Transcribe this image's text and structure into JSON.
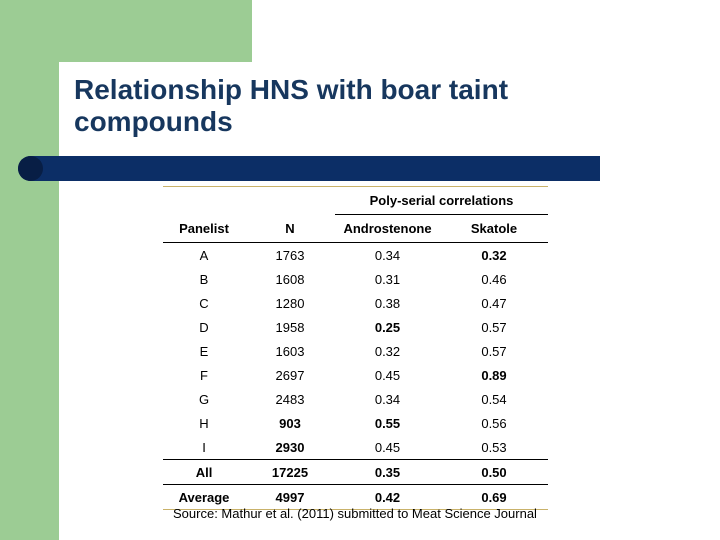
{
  "title": "Relationship HNS with boar taint compounds",
  "colors": {
    "accent_green": "#9ccc94",
    "title_blue": "#17375e",
    "bar_navy": "#0c2e66"
  },
  "table": {
    "group_header": "Poly-serial correlations",
    "columns": [
      "Panelist",
      "N",
      "Androstenone",
      "Skatole"
    ],
    "rows": [
      {
        "panelist": "A",
        "n": "1763",
        "andro": "0.34",
        "skatole": "0.32"
      },
      {
        "panelist": "B",
        "n": "1608",
        "andro": "0.31",
        "skatole": "0.46"
      },
      {
        "panelist": "C",
        "n": "1280",
        "andro": "0.38",
        "skatole": "0.47"
      },
      {
        "panelist": "D",
        "n": "1958",
        "andro": "0.25",
        "skatole": "0.57"
      },
      {
        "panelist": "E",
        "n": "1603",
        "andro": "0.32",
        "skatole": "0.57"
      },
      {
        "panelist": "F",
        "n": "2697",
        "andro": "0.45",
        "skatole": "0.89"
      },
      {
        "panelist": "G",
        "n": "2483",
        "andro": "0.34",
        "skatole": "0.54"
      },
      {
        "panelist": "H",
        "n": "903",
        "andro": "0.55",
        "skatole": "0.56"
      },
      {
        "panelist": "I",
        "n": "2930",
        "andro": "0.45",
        "skatole": "0.53"
      }
    ],
    "summary": [
      {
        "panelist": "All",
        "n": "17225",
        "andro": "0.35",
        "skatole": "0.50"
      },
      {
        "panelist": "Average",
        "n": "4997",
        "andro": "0.42",
        "skatole": "0.69"
      }
    ]
  },
  "source": "Source: Mathur et al. (2011) submitted to Meat Science Journal"
}
